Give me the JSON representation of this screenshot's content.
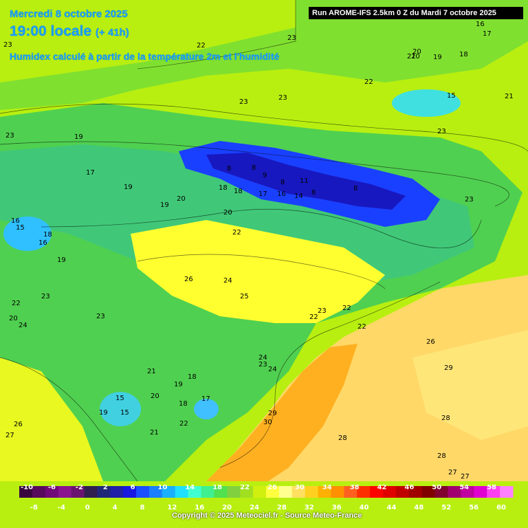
{
  "header": {
    "date": "Mercredi 8 octobre 2025",
    "time": "19:00 locale",
    "lead": "(+ 41h)",
    "description": "Humidex calculé à partir de la température 2m et l'humidité",
    "run": "Run AROME-IFS 2.5km 0 Z du Mardi 7 octobre 2025"
  },
  "copyright": "Copyright © 2025 Meteociel.fr - Source Meteo-France",
  "legend": {
    "top_labels": [
      "-10",
      "-6",
      "-2",
      "2",
      "6",
      "10",
      "14",
      "18",
      "22",
      "26",
      "30",
      "34",
      "38",
      "42",
      "46",
      "50",
      "54",
      "58"
    ],
    "bottom_labels": [
      "-8",
      "-4",
      "0",
      "4",
      "8",
      "12",
      "16",
      "20",
      "24",
      "28",
      "32",
      "36",
      "40",
      "44",
      "48",
      "52",
      "56",
      "60"
    ],
    "colors": [
      "#3a0640",
      "#580a5c",
      "#700a78",
      "#8a1490",
      "#6a1470",
      "#302050",
      "#202878",
      "#2020a8",
      "#1818e0",
      "#1a50ff",
      "#1a80ff",
      "#1ab0ff",
      "#20e0ff",
      "#40ffd0",
      "#40f090",
      "#50e050",
      "#80d040",
      "#a0e020",
      "#d0f010",
      "#ffff40",
      "#ffff90",
      "#ffe060",
      "#ffd020",
      "#ffb000",
      "#ff9000",
      "#ff6020",
      "#ff3000",
      "#ff0000",
      "#e00000",
      "#c00000",
      "#a00000",
      "#800000",
      "#800030",
      "#a00070",
      "#c000a0",
      "#e000d0",
      "#ff40f0",
      "#ff80ff"
    ]
  },
  "map_labels": [
    "23",
    "22",
    "23",
    "23",
    "23",
    "22",
    "21",
    "20",
    "19",
    "18",
    "17",
    "16",
    "15",
    "21",
    "23",
    "19",
    "17",
    "18",
    "8",
    "9",
    "8",
    "8",
    "11",
    "8",
    "8",
    "19",
    "18",
    "17",
    "16",
    "14",
    "20",
    "19",
    "20",
    "22",
    "23",
    "18",
    "16",
    "15",
    "16",
    "19",
    "26",
    "24",
    "25",
    "22",
    "23",
    "22",
    "23",
    "24",
    "23",
    "22",
    "20",
    "24",
    "23",
    "21",
    "19",
    "18",
    "20",
    "17",
    "15",
    "15",
    "18",
    "21",
    "19",
    "22",
    "29",
    "28",
    "30",
    "28",
    "29",
    "26",
    "27",
    "28",
    "27",
    "20",
    "23",
    "22",
    "24",
    "26",
    "27"
  ],
  "colors": {
    "title": "#1aa0ff",
    "run_box_bg": "#000000",
    "sea_orange": "#ffd060",
    "land_green": "#8fe020",
    "mountain_blue": "#1a40ff"
  }
}
